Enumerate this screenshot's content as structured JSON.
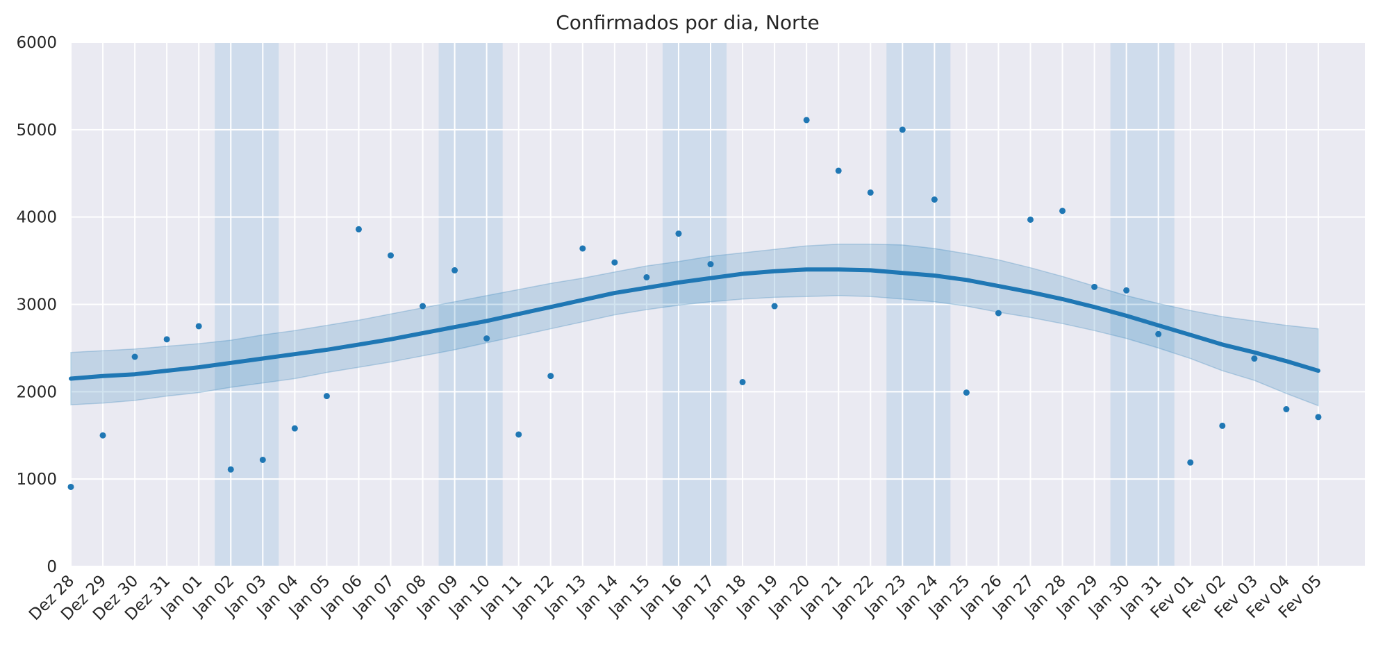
{
  "chart_data": {
    "type": "scatter",
    "title": "Confirmados por dia, Norte",
    "xlabel": "",
    "ylabel": "",
    "ylim": [
      0,
      6000
    ],
    "y_ticks": [
      0,
      1000,
      2000,
      3000,
      4000,
      5000,
      6000
    ],
    "grid": true,
    "legend": "none",
    "colors": {
      "background": "#eaeaf2",
      "grid": "#ffffff",
      "points": "#1f77b4",
      "trend": "#1f77b4",
      "band": "#1f77b4",
      "weekend": "#bcd2e8",
      "text": "#262626"
    },
    "categories": [
      "Dez 28",
      "Dez 29",
      "Dez 30",
      "Dez 31",
      "Jan 01",
      "Jan 02",
      "Jan 03",
      "Jan 04",
      "Jan 05",
      "Jan 06",
      "Jan 07",
      "Jan 08",
      "Jan 09",
      "Jan 10",
      "Jan 11",
      "Jan 12",
      "Jan 13",
      "Jan 14",
      "Jan 15",
      "Jan 16",
      "Jan 17",
      "Jan 18",
      "Jan 19",
      "Jan 20",
      "Jan 21",
      "Jan 22",
      "Jan 23",
      "Jan 24",
      "Jan 25",
      "Jan 26",
      "Jan 27",
      "Jan 28",
      "Jan 29",
      "Jan 30",
      "Jan 31",
      "Fev 01",
      "Fev 02",
      "Fev 03",
      "Fev 04",
      "Fev 05"
    ],
    "weekend_spans": [
      [
        "Jan 02",
        "Jan 03"
      ],
      [
        "Jan 09",
        "Jan 10"
      ],
      [
        "Jan 16",
        "Jan 17"
      ],
      [
        "Jan 23",
        "Jan 24"
      ],
      [
        "Jan 30",
        "Jan 31"
      ]
    ],
    "series": [
      {
        "kind": "points",
        "values": [
          910,
          1500,
          2400,
          2600,
          2750,
          1110,
          1220,
          1580,
          1950,
          3860,
          3560,
          2980,
          3390,
          2610,
          1510,
          2180,
          3640,
          3480,
          3310,
          3810,
          3460,
          2110,
          2980,
          5110,
          4530,
          4280,
          5000,
          4200,
          1990,
          2900,
          3970,
          4070,
          3200,
          3160,
          2660,
          1190,
          1610,
          2380,
          1800,
          1710
        ]
      },
      {
        "kind": "trend",
        "values": [
          2150,
          2180,
          2200,
          2240,
          2280,
          2330,
          2380,
          2430,
          2480,
          2540,
          2600,
          2670,
          2740,
          2810,
          2890,
          2970,
          3050,
          3130,
          3190,
          3250,
          3300,
          3350,
          3380,
          3400,
          3400,
          3390,
          3360,
          3330,
          3280,
          3210,
          3140,
          3060,
          2970,
          2870,
          2760,
          2650,
          2540,
          2450,
          2350,
          2240
        ],
        "band_upper": [
          2450,
          2470,
          2490,
          2520,
          2550,
          2590,
          2650,
          2700,
          2760,
          2820,
          2890,
          2960,
          3030,
          3100,
          3170,
          3240,
          3300,
          3370,
          3440,
          3490,
          3550,
          3590,
          3630,
          3670,
          3690,
          3690,
          3680,
          3640,
          3580,
          3510,
          3420,
          3320,
          3210,
          3100,
          3010,
          2930,
          2860,
          2810,
          2760,
          2720
        ],
        "band_lower": [
          1850,
          1870,
          1900,
          1950,
          1990,
          2050,
          2100,
          2150,
          2220,
          2280,
          2340,
          2410,
          2480,
          2560,
          2640,
          2720,
          2800,
          2880,
          2940,
          2990,
          3030,
          3060,
          3080,
          3090,
          3100,
          3090,
          3060,
          3030,
          2980,
          2910,
          2850,
          2780,
          2700,
          2610,
          2500,
          2380,
          2240,
          2130,
          1980,
          1840
        ]
      }
    ]
  }
}
